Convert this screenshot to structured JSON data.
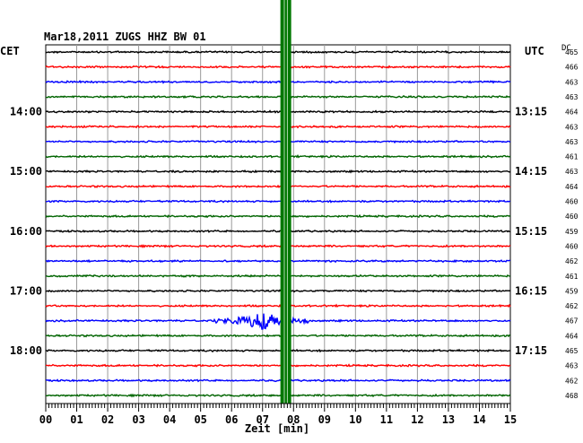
{
  "header": {
    "title": "Mar18,2011   ZUGS HHZ BW 01",
    "left_zone": "CET",
    "right_zone": "UTC",
    "dc_label": "DC"
  },
  "chart_data": {
    "type": "line",
    "title": "Mar18,2011   ZUGS HHZ BW 01",
    "xlabel": "Zeit [min]",
    "xlim": [
      0,
      15
    ],
    "x_ticks": [
      "00",
      "01",
      "02",
      "03",
      "04",
      "05",
      "06",
      "07",
      "08",
      "09",
      "10",
      "11",
      "12",
      "13",
      "14",
      "15"
    ],
    "trace_colors": [
      "#000000",
      "#ff0000",
      "#0000ff",
      "#006400"
    ],
    "left_time_labels": [
      {
        "row": 4,
        "label": "14:00"
      },
      {
        "row": 8,
        "label": "15:00"
      },
      {
        "row": 12,
        "label": "16:00"
      },
      {
        "row": 16,
        "label": "17:00"
      },
      {
        "row": 20,
        "label": "18:00"
      }
    ],
    "right_time_labels": [
      {
        "row": 4,
        "label": "13:15"
      },
      {
        "row": 8,
        "label": "14:15"
      },
      {
        "row": 12,
        "label": "15:15"
      },
      {
        "row": 16,
        "label": "16:15"
      },
      {
        "row": 20,
        "label": "17:15"
      }
    ],
    "dc_offsets": [
      465,
      466,
      463,
      463,
      464,
      463,
      463,
      461,
      463,
      464,
      460,
      460,
      459,
      460,
      462,
      461,
      459,
      462,
      467,
      464,
      465,
      463,
      462,
      468
    ],
    "event": {
      "row": 18,
      "start_min": 5.3,
      "peak_min": 7.0,
      "end_min": 8.5
    },
    "marker_min": 7.75,
    "grid": true
  }
}
